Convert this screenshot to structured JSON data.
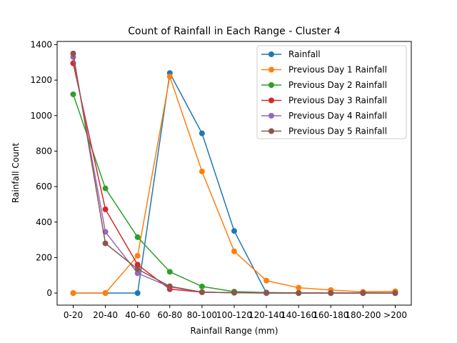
{
  "chart_data": {
    "type": "line",
    "title": "Count of Rainfall in Each Range - Cluster 4",
    "xlabel": "Rainfall Range (mm)",
    "ylabel": "Rainfall Count",
    "categories": [
      "0-20",
      "20-40",
      "40-60",
      "60-80",
      "80-100",
      "100-120",
      "120-140",
      "140-160",
      "160-180",
      "180-200",
      ">200"
    ],
    "yticks": [
      0,
      200,
      400,
      600,
      800,
      1000,
      1200,
      1400
    ],
    "ylim": [
      -68,
      1418
    ],
    "grid": false,
    "legend_position": "top-right",
    "series": [
      {
        "name": "Rainfall",
        "color": "#1f77b4",
        "values": [
          0,
          0,
          0,
          1240,
          900,
          350,
          0,
          0,
          0,
          0,
          0
        ]
      },
      {
        "name": "Previous Day 1 Rainfall",
        "color": "#ff7f0e",
        "values": [
          0,
          0,
          210,
          1220,
          685,
          235,
          70,
          30,
          17,
          7,
          10
        ]
      },
      {
        "name": "Previous Day 2 Rainfall",
        "color": "#2ca02c",
        "values": [
          1120,
          590,
          315,
          120,
          37,
          8,
          3,
          1,
          0,
          0,
          0
        ]
      },
      {
        "name": "Previous Day 3 Rainfall",
        "color": "#d62728",
        "values": [
          1295,
          472,
          160,
          22,
          5,
          2,
          1,
          0,
          0,
          0,
          0
        ]
      },
      {
        "name": "Previous Day 4 Rainfall",
        "color": "#9467bd",
        "values": [
          1330,
          345,
          112,
          35,
          5,
          2,
          0,
          0,
          0,
          0,
          0
        ]
      },
      {
        "name": "Previous Day 5 Rainfall",
        "color": "#8c564b",
        "values": [
          1350,
          280,
          135,
          38,
          5,
          2,
          1,
          0,
          0,
          0,
          0
        ]
      }
    ]
  }
}
